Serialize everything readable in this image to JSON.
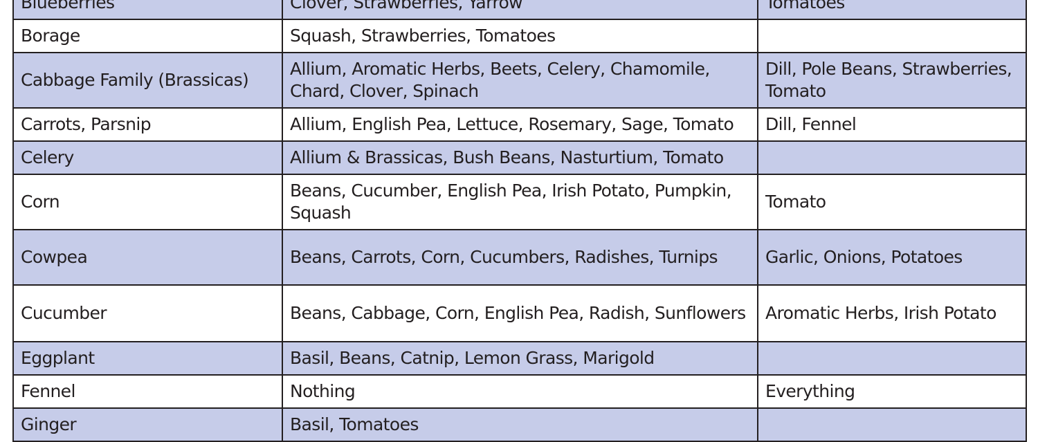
{
  "table": {
    "rows": [
      {
        "plant": "Blueberries",
        "companions": "Clover, Strawberries, Yarrow",
        "avoid": "Tomatoes",
        "shaded": true
      },
      {
        "plant": "Borage",
        "companions": "Squash, Strawberries, Tomatoes",
        "avoid": "",
        "shaded": false
      },
      {
        "plant": "Cabbage Family (Brassicas)",
        "companions": "Allium, Aromatic Herbs, Beets, Celery, Chamomile, Chard, Clover, Spinach",
        "avoid": "Dill, Pole Beans, Strawberries, Tomato",
        "shaded": true
      },
      {
        "plant": "Carrots, Parsnip",
        "companions": "Allium, English Pea, Lettuce, Rosemary, Sage, Tomato",
        "avoid": "Dill, Fennel",
        "shaded": false
      },
      {
        "plant": "Celery",
        "companions": "Allium & Brassicas, Bush Beans, Nasturtium, Tomato",
        "avoid": "",
        "shaded": true
      },
      {
        "plant": "Corn",
        "companions": "Beans, Cucumber, English Pea, Irish Potato, Pumpkin, Squash",
        "avoid": "Tomato",
        "shaded": false
      },
      {
        "plant": "Cowpea",
        "companions": "Beans, Carrots, Corn, Cucumbers, Radishes, Turnips",
        "avoid": "Garlic, Onions, Potatoes",
        "shaded": true
      },
      {
        "plant": "Cucumber",
        "companions": "Beans, Cabbage, Corn, English Pea, Radish, Sunflowers",
        "avoid": "Aromatic Herbs, Irish Potato",
        "shaded": false
      },
      {
        "plant": "Eggplant",
        "companions": "Basil, Beans, Catnip, Lemon Grass, Marigold",
        "avoid": "",
        "shaded": true
      },
      {
        "plant": "Fennel",
        "companions": "Nothing",
        "avoid": "Everything",
        "shaded": false
      },
      {
        "plant": "Ginger",
        "companions": "Basil, Tomatoes",
        "avoid": "",
        "shaded": true
      }
    ]
  },
  "colors": {
    "row_shade": "#c6cce9",
    "border": "#231f20",
    "text": "#231f20"
  }
}
